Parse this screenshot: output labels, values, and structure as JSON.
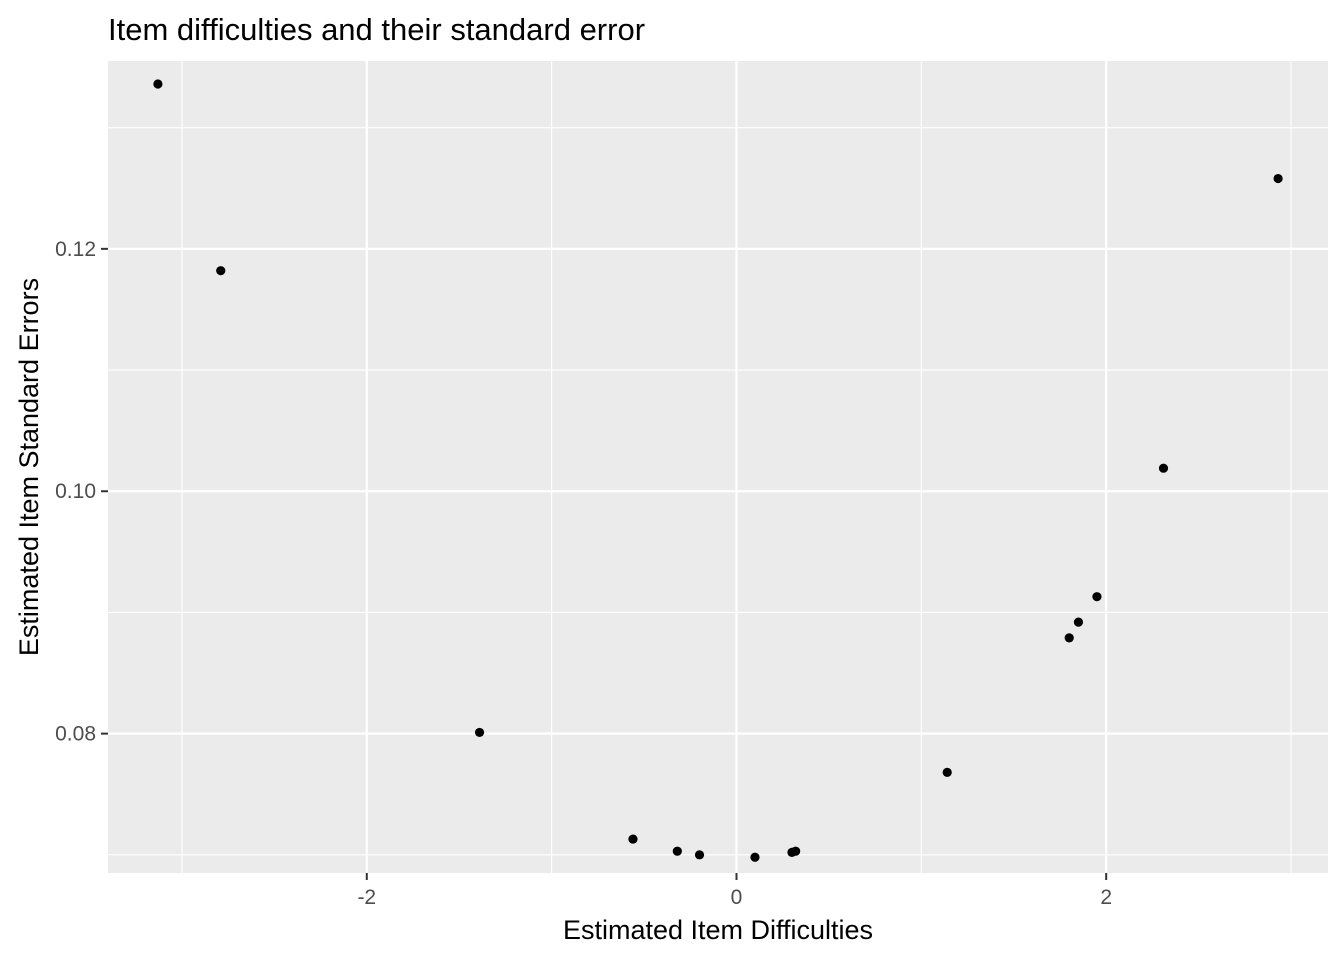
{
  "chart_data": {
    "type": "scatter",
    "title": "Item difficulties and their standard error",
    "xlabel": "Estimated Item Difficulties",
    "ylabel": "Estimated Item Standard Errors",
    "xlim": [
      -3.4,
      3.2
    ],
    "ylim": [
      0.0685,
      0.1355
    ],
    "x_ticks": [
      -2,
      0,
      2
    ],
    "x_tick_labels": [
      "-2",
      "0",
      "2"
    ],
    "y_ticks": [
      0.08,
      0.1,
      0.12
    ],
    "y_tick_labels": [
      "0.08",
      "0.10",
      "0.12"
    ],
    "x_minor_ticks": [
      -3,
      -1,
      1,
      3
    ],
    "y_minor_ticks": [
      0.07,
      0.09,
      0.11,
      0.13
    ],
    "grid": true,
    "panel_background": "#ebebeb",
    "grid_color": "#ffffff",
    "point_color": "#000000",
    "points": [
      {
        "x": -3.13,
        "y": 0.1336
      },
      {
        "x": -2.79,
        "y": 0.1182
      },
      {
        "x": -1.39,
        "y": 0.0801
      },
      {
        "x": -0.56,
        "y": 0.0713
      },
      {
        "x": -0.32,
        "y": 0.0703
      },
      {
        "x": -0.2,
        "y": 0.07
      },
      {
        "x": 0.1,
        "y": 0.0698
      },
      {
        "x": 0.3,
        "y": 0.0702
      },
      {
        "x": 0.32,
        "y": 0.0703
      },
      {
        "x": 1.14,
        "y": 0.0768
      },
      {
        "x": 1.8,
        "y": 0.0879
      },
      {
        "x": 1.85,
        "y": 0.0892
      },
      {
        "x": 1.95,
        "y": 0.0913
      },
      {
        "x": 2.31,
        "y": 0.1019
      },
      {
        "x": 2.93,
        "y": 0.1258
      }
    ]
  }
}
